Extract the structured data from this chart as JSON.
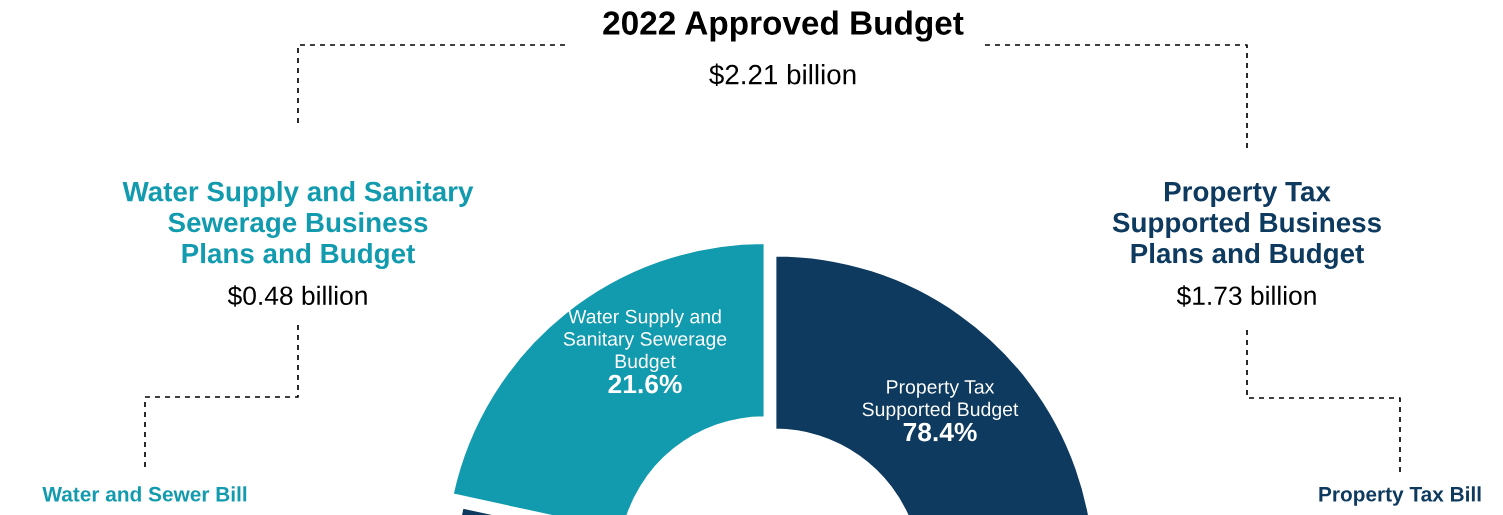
{
  "chart_data": {
    "type": "donut",
    "title": "2022 Approved Budget",
    "subtitle": "$2.21 billion",
    "categories": [
      "Water Supply and\nSanitary Sewerage\nBudget",
      "Property Tax\nSupported Budget"
    ],
    "values": [
      21.6,
      78.4
    ],
    "colors": [
      "#129bae",
      "#0d3a5e"
    ],
    "value_labels": [
      "21.6%",
      "78.4%"
    ],
    "annotations": [
      "Water Supply and Sanitary\nSewerage Business\nPlans and Budget",
      "$0.48 billion",
      "Property Tax\nSupported Business\nPlans and Budget",
      "$1.73 billion",
      "Water and Sewer Bill",
      "Property Tax Bill"
    ]
  }
}
